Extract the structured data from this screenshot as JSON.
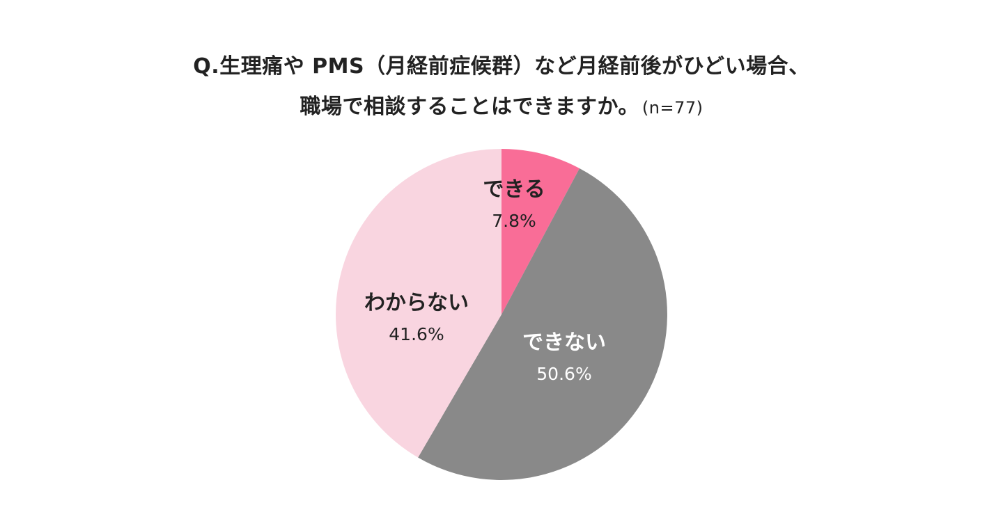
{
  "title": {
    "line1": "Q.生理痛や PMS（月経前症候群）など月経前後がひどい場合、",
    "line2": "職場で相談することはできますか。",
    "note": "(n=77)"
  },
  "chart_data": {
    "type": "pie",
    "start_angle_deg": 0,
    "direction": "clockwise",
    "legend": "none",
    "slices": [
      {
        "label": "できる",
        "value": 7.8,
        "value_label": "7.8%",
        "color": "#F96D97",
        "text_color": "#222222"
      },
      {
        "label": "できない",
        "value": 50.6,
        "value_label": "50.6%",
        "color": "#898989",
        "text_color": "#FFFFFF"
      },
      {
        "label": "わからない",
        "value": 41.6,
        "value_label": "41.6%",
        "color": "#F9D5E0",
        "text_color": "#222222"
      }
    ]
  }
}
